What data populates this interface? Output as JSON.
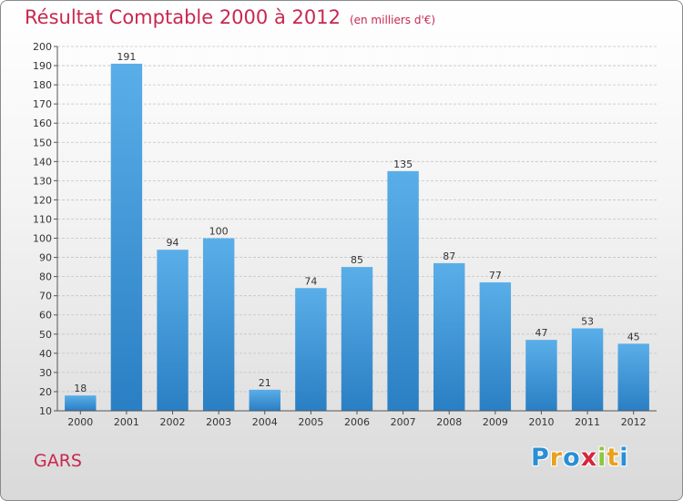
{
  "title": "Résultat Comptable 2000 à 2012",
  "unit": "(en milliers d'€)",
  "place": "GARS",
  "logo": {
    "letters": [
      "P",
      "r",
      "o",
      "x",
      "i",
      "t",
      "i"
    ],
    "colors": [
      "#2a8fd4",
      "#e8a21c",
      "#2a8fd4",
      "#d6263c",
      "#8dc63f",
      "#e8a21c",
      "#2a8fd4"
    ]
  },
  "colors": {
    "bar_top": "#5aaee8",
    "bar_bottom": "#2a7fc4",
    "title": "#c8284f"
  },
  "chart_data": {
    "type": "bar",
    "categories": [
      "2000",
      "2001",
      "2002",
      "2003",
      "2004",
      "2005",
      "2006",
      "2007",
      "2008",
      "2009",
      "2010",
      "2011",
      "2012"
    ],
    "values": [
      18,
      191,
      94,
      100,
      21,
      74,
      85,
      135,
      87,
      77,
      47,
      53,
      45
    ],
    "ylim": [
      10,
      200
    ],
    "yticks": [
      10,
      20,
      30,
      40,
      50,
      60,
      70,
      80,
      90,
      100,
      110,
      120,
      130,
      140,
      150,
      160,
      170,
      180,
      190,
      200
    ],
    "grid": true,
    "data_labels": true
  }
}
